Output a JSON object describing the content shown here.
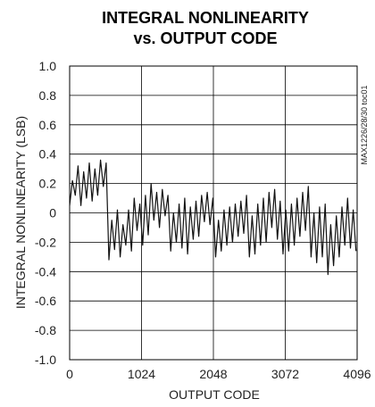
{
  "chart_data": {
    "type": "line",
    "title": "INTEGRAL NONLINEARITY",
    "subtitle": "vs. OUTPUT CODE",
    "xlabel": "OUTPUT CODE",
    "ylabel": "INTEGRAL NONLINEARITY (LSB)",
    "xlim": [
      0,
      4096
    ],
    "ylim": [
      -1.0,
      1.0
    ],
    "x_ticks": [
      0,
      1024,
      2048,
      3072,
      4096
    ],
    "x_tick_labels": [
      "0",
      "1024",
      "2048",
      "3072",
      "4096"
    ],
    "y_ticks": [
      1.0,
      0.8,
      0.6,
      0.4,
      0.2,
      0,
      -0.2,
      -0.4,
      -0.6,
      -0.8,
      -1.0
    ],
    "y_tick_labels": [
      "1.0",
      "0.8",
      "0.6",
      "0.4",
      "0.2",
      "0",
      "-0.2",
      "-0.4",
      "-0.6",
      "-0.8",
      "-1.0"
    ],
    "grid": true,
    "side_note": "MAX1226/28/30 toc01",
    "series": [
      {
        "x": [
          0,
          40,
          80,
          120,
          160,
          200,
          240,
          280,
          320,
          360,
          400,
          440,
          480,
          520,
          560,
          600,
          640,
          680,
          720,
          760,
          800,
          840,
          880,
          920,
          960,
          1000,
          1040,
          1080,
          1120,
          1160,
          1200,
          1240,
          1280,
          1320,
          1360,
          1400,
          1440,
          1480,
          1520,
          1560,
          1600,
          1640,
          1680,
          1720,
          1760,
          1800,
          1840,
          1880,
          1920,
          1960,
          2000,
          2040,
          2080,
          2120,
          2160,
          2200,
          2240,
          2280,
          2320,
          2360,
          2400,
          2440,
          2480,
          2520,
          2560,
          2600,
          2640,
          2680,
          2720,
          2760,
          2800,
          2840,
          2880,
          2920,
          2960,
          3000,
          3040,
          3080,
          3120,
          3160,
          3200,
          3240,
          3280,
          3320,
          3360,
          3400,
          3440,
          3480,
          3520,
          3560,
          3600,
          3640,
          3680,
          3720,
          3760,
          3800,
          3840,
          3880,
          3920,
          3960,
          4000,
          4040,
          4080
        ],
        "y": [
          0.05,
          0.22,
          0.12,
          0.32,
          0.05,
          0.28,
          0.1,
          0.34,
          0.08,
          0.3,
          0.12,
          0.36,
          0.18,
          0.34,
          -0.32,
          -0.05,
          -0.25,
          0.02,
          -0.3,
          -0.08,
          -0.22,
          0.02,
          -0.26,
          0.1,
          -0.12,
          0.06,
          -0.22,
          0.12,
          -0.15,
          0.2,
          -0.05,
          0.14,
          -0.1,
          0.16,
          -0.02,
          0.12,
          -0.26,
          0.0,
          -0.2,
          0.06,
          -0.24,
          0.1,
          -0.28,
          0.04,
          -0.18,
          0.08,
          -0.16,
          0.12,
          -0.06,
          0.14,
          -0.08,
          0.1,
          -0.3,
          -0.05,
          -0.26,
          0.02,
          -0.22,
          0.04,
          -0.2,
          0.06,
          -0.16,
          0.08,
          -0.14,
          0.12,
          -0.3,
          -0.02,
          -0.28,
          0.06,
          -0.22,
          0.1,
          -0.2,
          0.14,
          -0.1,
          0.16,
          -0.18,
          0.08,
          -0.28,
          0.02,
          -0.26,
          0.06,
          -0.22,
          0.1,
          -0.16,
          0.14,
          -0.12,
          0.18,
          -0.3,
          0.0,
          -0.34,
          0.04,
          -0.3,
          0.06,
          -0.42,
          -0.08,
          -0.36,
          -0.02,
          -0.3,
          0.04,
          -0.22,
          0.1,
          -0.24,
          0.02,
          -0.26
        ]
      }
    ]
  }
}
